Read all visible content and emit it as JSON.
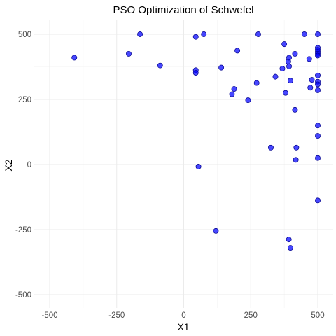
{
  "chart_data": {
    "type": "scatter",
    "title": "PSO Optimization of Schwefel",
    "xlabel": "X1",
    "ylabel": "X2",
    "xlim": [
      -500,
      500
    ],
    "ylim": [
      -500,
      500
    ],
    "x_ticks": [
      -500,
      -250,
      0,
      250,
      500
    ],
    "x_tick_labels": [
      "-500",
      "-250",
      "0",
      "250",
      "500"
    ],
    "y_ticks": [
      -500,
      -250,
      0,
      250,
      500
    ],
    "y_tick_labels": [
      "-500",
      "-250",
      "0",
      "250",
      "500"
    ],
    "grid": true,
    "point_color": "#0000FF",
    "point_stroke": "#00008B",
    "points": [
      {
        "x": -408,
        "y": 410
      },
      {
        "x": -205,
        "y": 425
      },
      {
        "x": -163,
        "y": 500
      },
      {
        "x": -88,
        "y": 380
      },
      {
        "x": 45,
        "y": 490
      },
      {
        "x": 75,
        "y": 500
      },
      {
        "x": 45,
        "y": 362
      },
      {
        "x": 45,
        "y": 352
      },
      {
        "x": 140,
        "y": 372
      },
      {
        "x": 200,
        "y": 437
      },
      {
        "x": 55,
        "y": -8
      },
      {
        "x": 120,
        "y": -255
      },
      {
        "x": 180,
        "y": 270
      },
      {
        "x": 188,
        "y": 290
      },
      {
        "x": 240,
        "y": 247
      },
      {
        "x": 278,
        "y": 500
      },
      {
        "x": 272,
        "y": 313
      },
      {
        "x": 325,
        "y": 65
      },
      {
        "x": 342,
        "y": 337
      },
      {
        "x": 368,
        "y": 368
      },
      {
        "x": 375,
        "y": 462
      },
      {
        "x": 380,
        "y": 275
      },
      {
        "x": 390,
        "y": 395
      },
      {
        "x": 393,
        "y": 410
      },
      {
        "x": 393,
        "y": 377
      },
      {
        "x": 398,
        "y": 322
      },
      {
        "x": 415,
        "y": 425
      },
      {
        "x": 415,
        "y": 210
      },
      {
        "x": 420,
        "y": 65
      },
      {
        "x": 418,
        "y": 18
      },
      {
        "x": 392,
        "y": -288
      },
      {
        "x": 398,
        "y": -320
      },
      {
        "x": 450,
        "y": 500
      },
      {
        "x": 468,
        "y": 405
      },
      {
        "x": 472,
        "y": 295
      },
      {
        "x": 478,
        "y": 325
      },
      {
        "x": 500,
        "y": 500
      },
      {
        "x": 500,
        "y": 448
      },
      {
        "x": 500,
        "y": 440
      },
      {
        "x": 500,
        "y": 432
      },
      {
        "x": 500,
        "y": 425
      },
      {
        "x": 500,
        "y": 418
      },
      {
        "x": 500,
        "y": 342
      },
      {
        "x": 500,
        "y": 318
      },
      {
        "x": 500,
        "y": 308
      },
      {
        "x": 500,
        "y": 285
      },
      {
        "x": 500,
        "y": 150
      },
      {
        "x": 500,
        "y": 110
      },
      {
        "x": 500,
        "y": 25
      },
      {
        "x": 500,
        "y": -138
      }
    ]
  }
}
